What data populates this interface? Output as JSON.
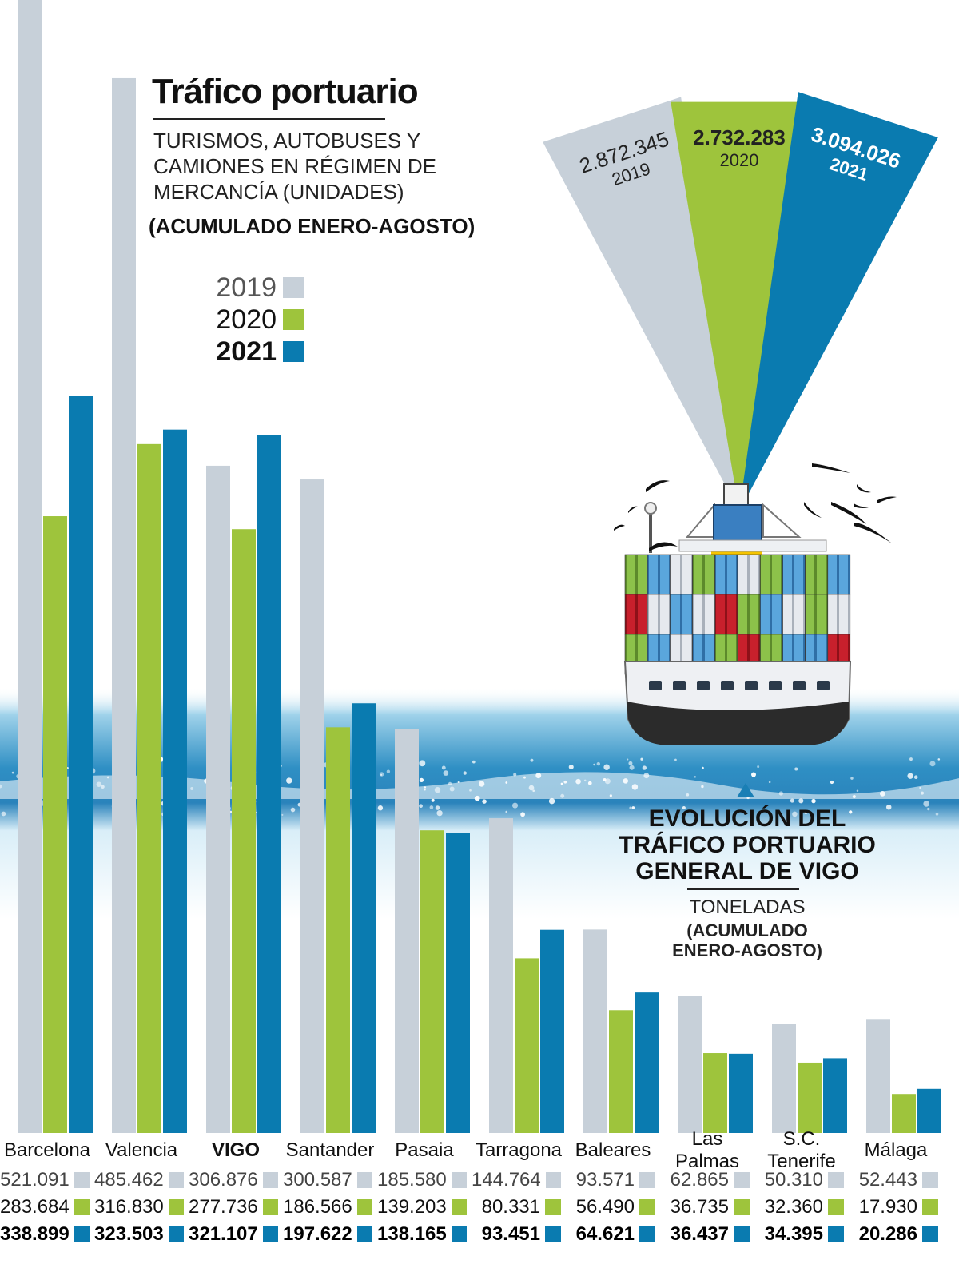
{
  "header": {
    "title": "Tráfico portuario",
    "subtitle": "TURISMOS, AUTOBUSES Y CAMIONES EN RÉGIMEN DE MERCANCÍA (UNIDADES)",
    "period": "(ACUMULADO ENERO-AGOSTO)"
  },
  "legend": {
    "items": [
      {
        "label": "2019",
        "color": "#c7d0d9"
      },
      {
        "label": "2020",
        "color": "#9ec43c"
      },
      {
        "label": "2021",
        "color": "#0a7bb0"
      }
    ]
  },
  "vigo_panel": {
    "title": "EVOLUCIÓN DEL TRÁFICO PORTUARIO GENERAL DE VIGO",
    "unit": "TONELADAS",
    "period": "(ACUMULADO ENERO-AGOSTO)"
  },
  "chart_data": [
    {
      "type": "bar",
      "title": "Tráfico portuario",
      "subtitle": "TURISMOS, AUTOBUSES Y CAMIONES EN RÉGIMEN DE MERCANCÍA (UNIDADES)",
      "categories": [
        "Barcelona",
        "Valencia",
        "VIGO",
        "Santander",
        "Pasaia",
        "Tarragona",
        "Baleares",
        "Las Palmas",
        "S.C. Tenerife",
        "Málaga"
      ],
      "series": [
        {
          "name": "2019",
          "color": "#c7d0d9",
          "labels": [
            "521.091",
            "485.462",
            "306.876",
            "300.587",
            "185.580",
            "144.764",
            "93.571",
            "62.865",
            "50.310",
            "52.443"
          ],
          "values": [
            521091,
            485462,
            306876,
            300587,
            185580,
            144764,
            93571,
            62865,
            50310,
            52443
          ]
        },
        {
          "name": "2020",
          "color": "#9ec43c",
          "labels": [
            "283.684",
            "316.830",
            "277.736",
            "186.566",
            "139.203",
            "80.331",
            "56.490",
            "36.735",
            "32.360",
            "17.930"
          ],
          "values": [
            283684,
            316830,
            277736,
            186566,
            139203,
            80331,
            56490,
            36735,
            32360,
            17930
          ]
        },
        {
          "name": "2021",
          "color": "#0a7bb0",
          "labels": [
            "338.899",
            "323.503",
            "321.107",
            "197.622",
            "138.165",
            "93.451",
            "64.621",
            "36.437",
            "34.395",
            "20.286"
          ],
          "values": [
            338899,
            323503,
            321107,
            197622,
            138165,
            93451,
            64621,
            36437,
            34395,
            20286
          ]
        }
      ],
      "highlight_category": "VIGO",
      "ylim": [
        0,
        521091
      ]
    },
    {
      "type": "bar",
      "title": "EVOLUCIÓN DEL TRÁFICO PORTUARIO GENERAL DE VIGO",
      "unit": "TONELADAS",
      "categories": [
        "2019",
        "2020",
        "2021"
      ],
      "labels": [
        "2.872.345",
        "2.732.283",
        "3.094.026"
      ],
      "values": [
        2872345,
        2732283,
        3094026
      ],
      "colors": [
        "#c7d0d9",
        "#9ec43c",
        "#0a7bb0"
      ]
    }
  ]
}
